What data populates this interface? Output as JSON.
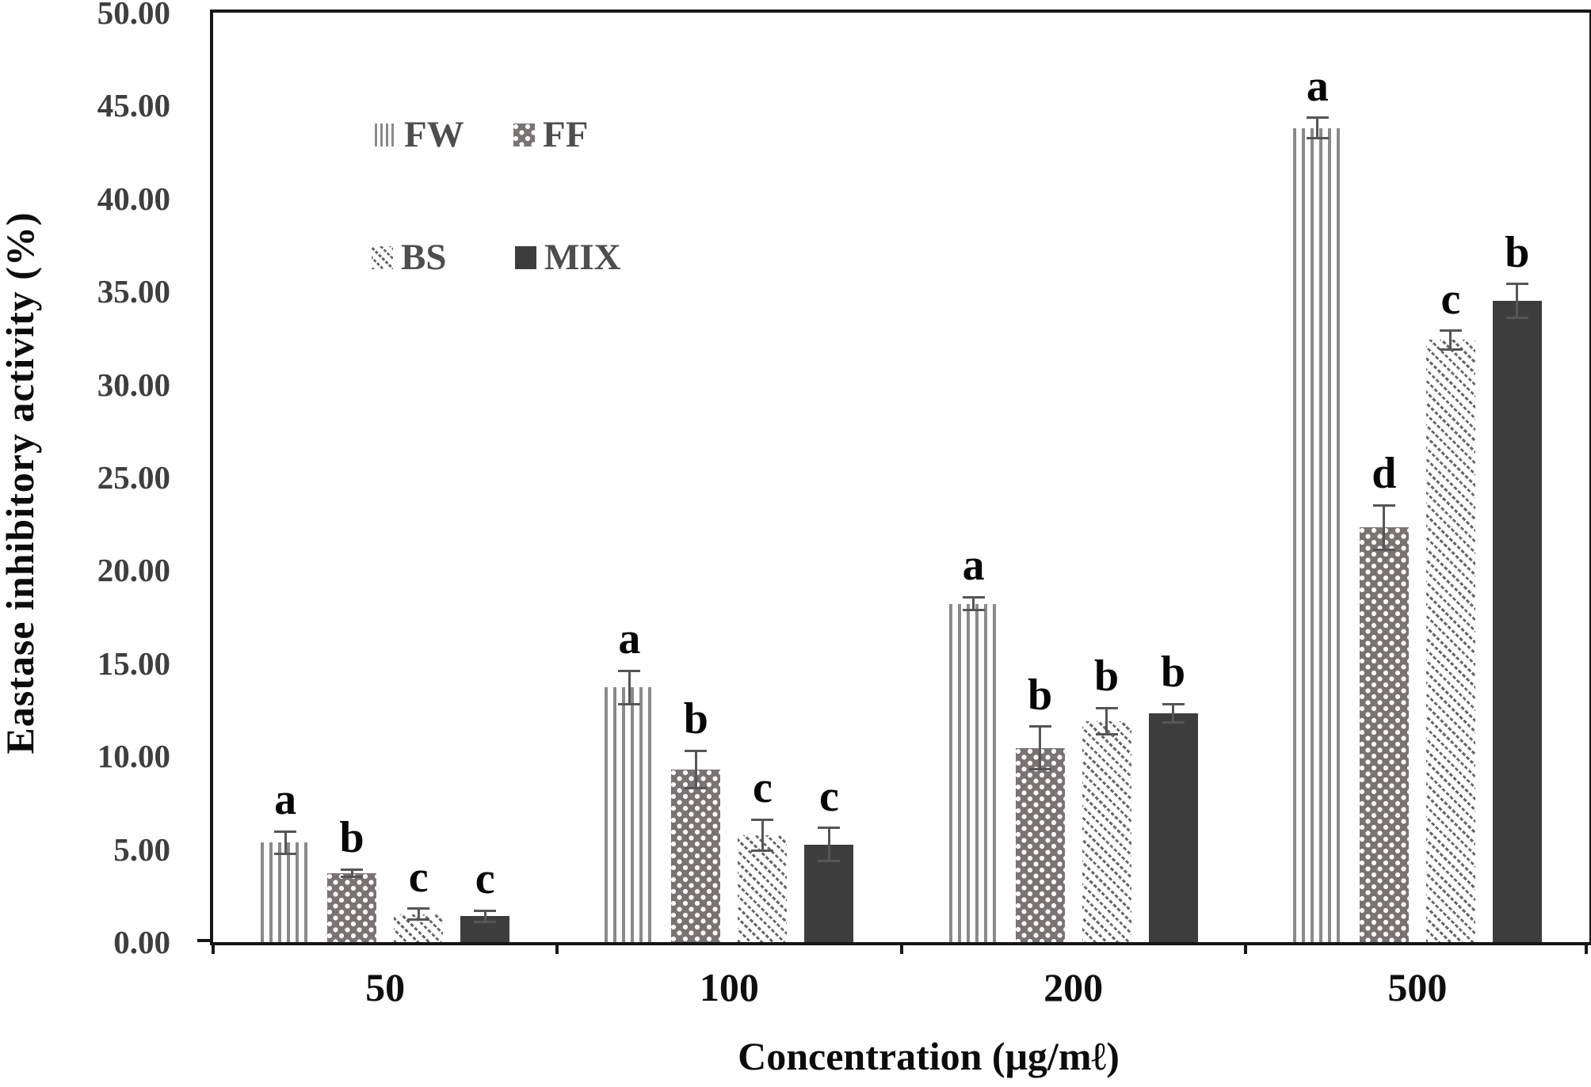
{
  "chart_data": {
    "type": "bar",
    "title": "",
    "xlabel": "Concentration (μg/mℓ)",
    "ylabel": "Eastase inhibitory activity (%)",
    "ylim": [
      0,
      50
    ],
    "ytick_step": 5,
    "ytick_labels": [
      "0.00",
      "5.00",
      "10.00",
      "15.00",
      "20.00",
      "25.00",
      "30.00",
      "35.00",
      "40.00",
      "45.00",
      "50.00"
    ],
    "categories": [
      "50",
      "100",
      "200",
      "500"
    ],
    "grid": false,
    "legend_position": "top-left-inside",
    "error_bars": true,
    "series": [
      {
        "name": "FW",
        "pattern": "vertical-stripes",
        "color": "#8a8a8a",
        "values": [
          5.35,
          13.7,
          18.2,
          43.8
        ],
        "errors": [
          0.6,
          0.9,
          0.35,
          0.55
        ],
        "letters": [
          "a",
          "a",
          "a",
          "a"
        ]
      },
      {
        "name": "FF",
        "pattern": "white-dots-on-gray",
        "color": "#797373",
        "values": [
          3.7,
          9.3,
          10.45,
          22.3
        ],
        "errors": [
          0.2,
          1.0,
          1.15,
          1.2
        ],
        "letters": [
          "b",
          "b",
          "b",
          "d"
        ]
      },
      {
        "name": "BS",
        "pattern": "diagonal-dotted-stripes",
        "color": "#676767",
        "values": [
          1.5,
          5.75,
          11.9,
          32.4
        ],
        "errors": [
          0.3,
          0.85,
          0.7,
          0.5
        ],
        "letters": [
          "c",
          "c",
          "b",
          "c"
        ]
      },
      {
        "name": "MIX",
        "pattern": "solid-dark",
        "color": "#3d3d3d",
        "values": [
          1.4,
          5.25,
          12.3,
          34.5
        ],
        "errors": [
          0.3,
          0.9,
          0.5,
          0.9
        ],
        "letters": [
          "c",
          "c",
          "b",
          "b"
        ]
      }
    ],
    "colors": {
      "axis": "#161616",
      "error_bar": "#565656",
      "ytick_text": "#3e3e3e",
      "xtick_text": "#0f0f0f",
      "legend_text": "#4e4e4e",
      "letter_text": "#060606"
    }
  }
}
